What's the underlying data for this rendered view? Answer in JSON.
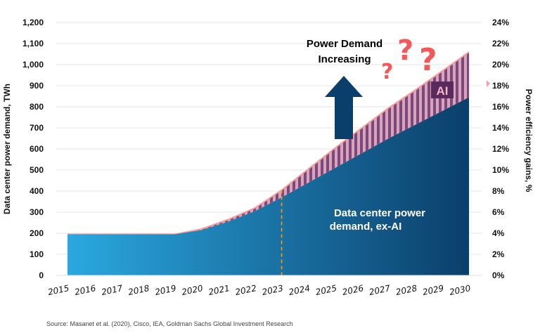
{
  "chart_data": {
    "type": "area",
    "title": "",
    "x": [
      2015,
      2016,
      2017,
      2018,
      2019,
      2020,
      2021,
      2022,
      2023,
      2024,
      2025,
      2026,
      2027,
      2028,
      2029,
      2030
    ],
    "series": [
      {
        "name": "Data center power demand, ex-AI",
        "values": [
          195,
          195,
          195,
          195,
          195,
          215,
          255,
          305,
          370,
          440,
          510,
          580,
          650,
          715,
          780,
          845
        ],
        "color_start": "#2aa8e0",
        "color_end": "#0b3f6b"
      },
      {
        "name": "AI",
        "values": [
          0,
          0,
          0,
          0,
          0,
          5,
          10,
          15,
          35,
          65,
          95,
          120,
          145,
          165,
          190,
          215
        ],
        "color": "#7b4a78",
        "stripe_color": "#d9a3c0"
      }
    ],
    "ylabel": "Data center power demand, TWh",
    "y2label": "Power efficiency gains, %",
    "ylim": [
      0,
      1200
    ],
    "y_ticks": [
      "0",
      "100",
      "200",
      "300",
      "400",
      "500",
      "600",
      "700",
      "800",
      "900",
      "1,000",
      "1,100",
      "1,200"
    ],
    "y2lim": [
      0,
      24
    ],
    "y2_ticks": [
      "0%",
      "2%",
      "4%",
      "6%",
      "8%",
      "10%",
      "12%",
      "14%",
      "16%",
      "18%",
      "20%",
      "22%",
      "24%"
    ],
    "x_ticks": [
      "2015",
      "2016",
      "2017",
      "2018",
      "2019",
      "2020",
      "2021",
      "2022",
      "2023",
      "2024",
      "2025",
      "2026",
      "2027",
      "2028",
      "2029",
      "2030"
    ],
    "grid": true,
    "forecast_marker_x": 2023,
    "annotations": {
      "power_demand": "Power Demand\nIncreasing",
      "power_demand_line1": "Power Demand",
      "power_demand_line2": "Increasing",
      "ai_label": "AI",
      "exai_line1": "Data center power",
      "exai_line2": "demand, ex-AI",
      "question_marks": "???"
    },
    "arrow_color": "#0b3f6b",
    "question_color": "#f25a5a"
  },
  "source": "Source: Masanet et al. (2020), Cisco, IEA, Goldman Sachs Global Investment Research"
}
